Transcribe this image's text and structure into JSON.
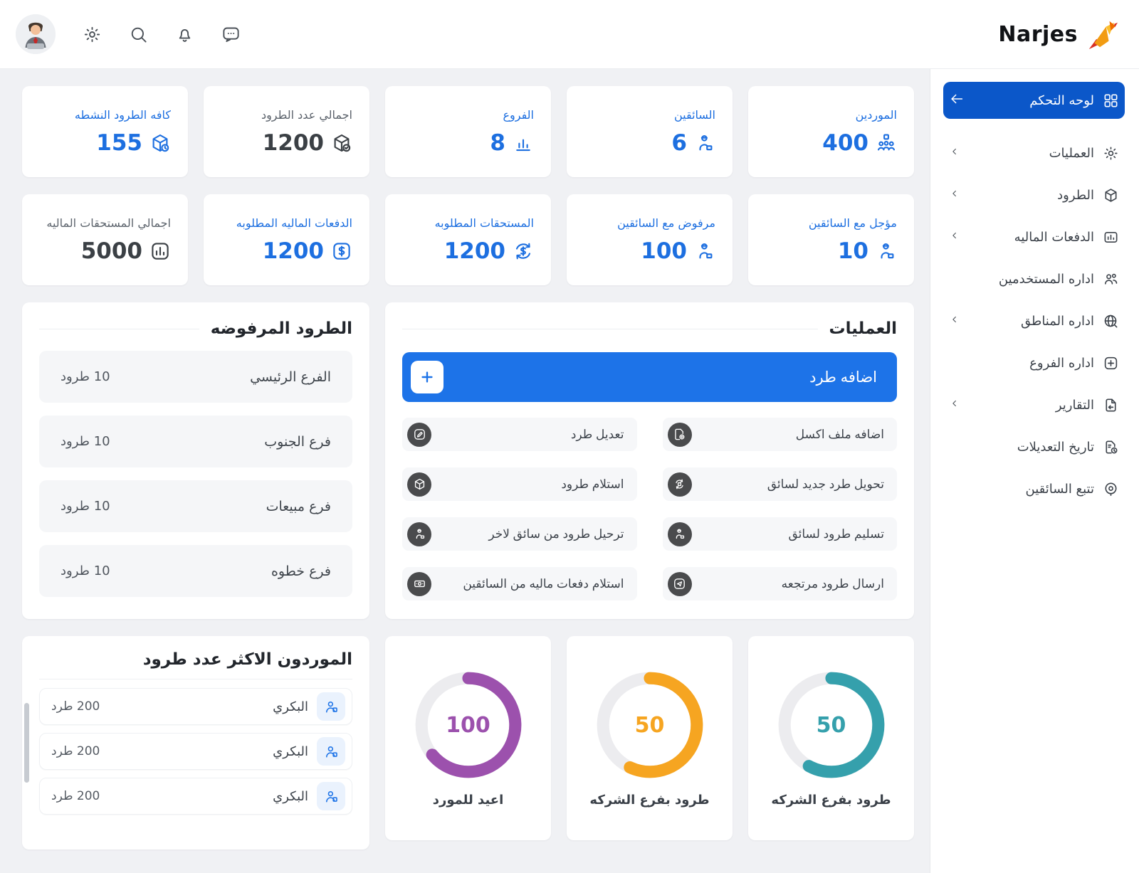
{
  "colors": {
    "accent": "#1d6fe0",
    "sidebar_active": "#0b57c9",
    "add_button": "#1d73e8",
    "op_icon_bg": "#4a4b4d",
    "donut_track": "#ececef"
  },
  "topbar": {
    "logo": "Narjes",
    "icons": [
      {
        "name": "settings"
      },
      {
        "name": "search"
      },
      {
        "name": "notifications"
      },
      {
        "name": "messages"
      }
    ]
  },
  "sidebar": {
    "items": [
      {
        "label": "لوحه التحكم",
        "icon": "dashboard",
        "active": true,
        "arrow": true
      },
      {
        "label": "العمليات",
        "icon": "operations",
        "chevron": true
      },
      {
        "label": "الطرود",
        "icon": "parcels",
        "chevron": true
      },
      {
        "label": "الدفعات الماليه",
        "icon": "payments",
        "chevron": true
      },
      {
        "label": "اداره المستخدمين",
        "icon": "users",
        "chevron": false
      },
      {
        "label": "اداره المناطق",
        "icon": "regions",
        "chevron": true
      },
      {
        "label": "اداره الفروع",
        "icon": "branches",
        "chevron": false
      },
      {
        "label": "التقارير",
        "icon": "reports",
        "chevron": true
      },
      {
        "label": "تاريخ التعديلات",
        "icon": "history",
        "chevron": false
      },
      {
        "label": "تتبع السائقين",
        "icon": "tracking",
        "chevron": false
      }
    ]
  },
  "stats": [
    {
      "label": "الموردين",
      "value": "400",
      "icon": "suppliers",
      "accent": true
    },
    {
      "label": "السائقين",
      "value": "6",
      "icon": "driver",
      "accent": true
    },
    {
      "label": "الفروع",
      "value": "8",
      "icon": "bars",
      "accent": true
    },
    {
      "label": "اجمالي عدد الطرود",
      "value": "1200",
      "icon": "cube-check",
      "accent": false
    },
    {
      "label": "كافه الطرود النشطه",
      "value": "155",
      "icon": "cube-clock",
      "accent": true
    },
    {
      "label": "مؤجل مع السائقين",
      "value": "10",
      "icon": "driver",
      "accent": true
    },
    {
      "label": "مرفوض مع السائقين",
      "value": "100",
      "icon": "driver",
      "accent": true
    },
    {
      "label": "المستحقات المطلوبه",
      "value": "1200",
      "icon": "dollar-refresh",
      "accent": true
    },
    {
      "label": "الدفعات الماليه المطلوبه",
      "value": "1200",
      "icon": "dollar-square",
      "accent": true
    },
    {
      "label": "اجمالي المستحقات الماليه",
      "value": "5000",
      "icon": "chart-square",
      "accent": false
    }
  ],
  "sections": {
    "rejected_title": "الطرود المرفوضه",
    "operations_title": "العمليات",
    "suppliers_title": "الموردون الاكثر عدد طرود",
    "add_parcel_label": "اضافه طرد"
  },
  "rejected": [
    {
      "name": "الفرع الرئيسي",
      "count": "10 طرود"
    },
    {
      "name": "فرع الجنوب",
      "count": "10 طرود"
    },
    {
      "name": "فرع مبيعات",
      "count": "10 طرود"
    },
    {
      "name": "فرع خطوه",
      "count": "10 طرود"
    }
  ],
  "operations": [
    {
      "label": "اضافه ملف اكسل",
      "icon": "file-plus"
    },
    {
      "label": "تعديل طرد",
      "icon": "edit"
    },
    {
      "label": "تحويل طرد جديد لسائق",
      "icon": "transfer"
    },
    {
      "label": "استلام طرود",
      "icon": "cube"
    },
    {
      "label": "تسليم طرود لسائق",
      "icon": "driver"
    },
    {
      "label": "ترحيل طرود من سائق لاخر",
      "icon": "driver"
    },
    {
      "label": "ارسال طرود مرتجعه",
      "icon": "send"
    },
    {
      "label": "استلام دفعات ماليه من السائقين",
      "icon": "banknote"
    }
  ],
  "suppliers": [
    {
      "name": "البكري",
      "count": "200 طرد"
    },
    {
      "name": "البكري",
      "count": "200 طرد"
    },
    {
      "name": "البكري",
      "count": "200 طرد"
    }
  ],
  "chart_data": [
    {
      "type": "donut",
      "value": 100,
      "label": "اعيد للمورد",
      "color": "#9c51ad",
      "arc_percent": 64
    },
    {
      "type": "donut",
      "value": 50,
      "label": "طرود بفرع الشركه",
      "color": "#f6a521",
      "arc_percent": 57
    },
    {
      "type": "donut",
      "value": 50,
      "label": "طرود بفرع الشركه",
      "color": "#35a0ac",
      "arc_percent": 58
    }
  ]
}
